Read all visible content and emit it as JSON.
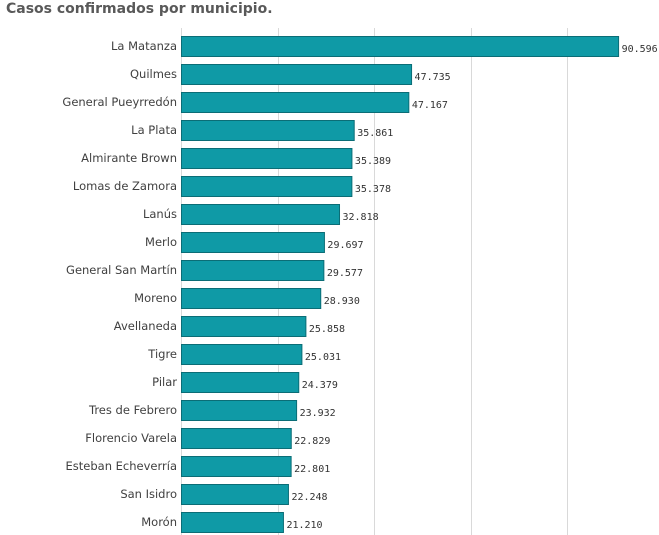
{
  "chart_data": {
    "type": "bar",
    "orientation": "horizontal",
    "title": "Casos confirmados por municipio.",
    "categories": [
      "La Matanza",
      "Quilmes",
      "General Pueyrredón",
      "La Plata",
      "Almirante Brown",
      "Lomas de Zamora",
      "Lanús",
      "Merlo",
      "General San Martín",
      "Moreno",
      "Avellaneda",
      "Tigre",
      "Pilar",
      "Tres de Febrero",
      "Florencio Varela",
      "Esteban Echeverría",
      "San Isidro",
      "Morón"
    ],
    "values": [
      90596,
      47735,
      47167,
      35861,
      35389,
      35378,
      32818,
      29697,
      29577,
      28930,
      25858,
      25031,
      24379,
      23932,
      22829,
      22801,
      22248,
      21210
    ],
    "value_labels": [
      "90.596",
      "47.735",
      "47.167",
      "35.861",
      "35.389",
      "35.378",
      "32.818",
      "29.697",
      "29.577",
      "28.930",
      "25.858",
      "25.031",
      "24.379",
      "23.932",
      "22.829",
      "22.801",
      "22.248",
      "21.210"
    ],
    "xlim": [
      0,
      100000
    ],
    "grid_step": 20000,
    "grid": true,
    "colors": {
      "bar": "#0f9aa6",
      "bar_edge": "#0b6d76",
      "grid": "#d9d9d9"
    }
  }
}
